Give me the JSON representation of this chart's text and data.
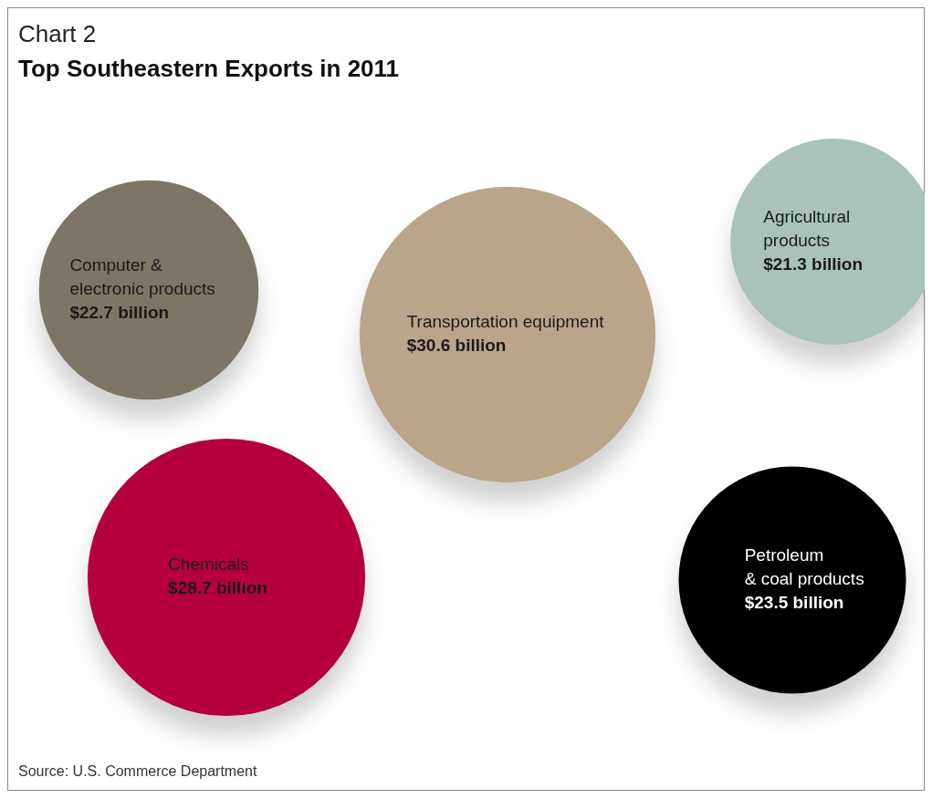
{
  "chart_data": {
    "type": "other",
    "title": "Chart 2",
    "subtitle": "Top Southeastern Exports in 2011",
    "categories": [
      "Computer &\nelectronic products",
      "Transportation equipment",
      "Agricultural\nproducts",
      "Chemicals",
      "Petroleum\n& coal products"
    ],
    "values": [
      22.7,
      30.6,
      21.3,
      28.7,
      23.5
    ],
    "value_labels": [
      "$22.7 billion",
      "$30.6 billion",
      "$21.3 billion",
      "$28.7 billion",
      "$23.5 billion"
    ],
    "colors": [
      "#7d7466",
      "#b9a58a",
      "#a9c3b8",
      "#b5053a",
      "#000000"
    ],
    "annotations": [
      "Source: U.S. Commerce Department"
    ]
  }
}
